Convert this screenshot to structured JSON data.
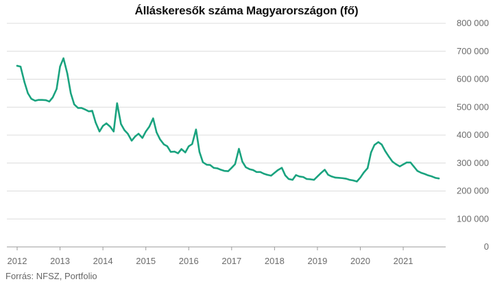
{
  "colors": {
    "line": "#1aa37f",
    "grid": "#dcdcdc",
    "axis": "#9a9a9a",
    "text": "#6b6b6b"
  },
  "source": "Forrás: NFSZ, Portfolio",
  "chart_data": {
    "type": "line",
    "title": "Álláskeresők száma Magyarországon (fő)",
    "xlabel": "",
    "ylabel": "",
    "xlim": [
      2012.0,
      2021.83
    ],
    "ylim": [
      0,
      800000
    ],
    "grid": true,
    "y_axis_position": "right",
    "x_ticks": [
      2012,
      2013,
      2014,
      2015,
      2016,
      2017,
      2018,
      2019,
      2020,
      2021
    ],
    "x_tick_labels": [
      "2012",
      "2013",
      "2014",
      "2015",
      "2016",
      "2017",
      "2018",
      "2019",
      "2020",
      "2021"
    ],
    "y_ticks": [
      0,
      100000,
      200000,
      300000,
      400000,
      500000,
      600000,
      700000,
      800000
    ],
    "y_tick_labels": [
      "0",
      "100 000",
      "200 000",
      "300 000",
      "400 000",
      "500 000",
      "600 000",
      "700 000",
      "800 000"
    ],
    "series": [
      {
        "x": [
          2012.0,
          2012.08,
          2012.17,
          2012.25,
          2012.33,
          2012.42,
          2012.5,
          2012.58,
          2012.67,
          2012.75,
          2012.83,
          2012.92,
          2013.0,
          2013.08,
          2013.17,
          2013.25,
          2013.33,
          2013.42,
          2013.5,
          2013.58,
          2013.67,
          2013.75,
          2013.83,
          2013.92,
          2014.0,
          2014.08,
          2014.17,
          2014.25,
          2014.33,
          2014.42,
          2014.5,
          2014.58,
          2014.67,
          2014.75,
          2014.83,
          2014.92,
          2015.0,
          2015.08,
          2015.17,
          2015.25,
          2015.33,
          2015.42,
          2015.5,
          2015.58,
          2015.67,
          2015.75,
          2015.83,
          2015.92,
          2016.0,
          2016.08,
          2016.17,
          2016.25,
          2016.33,
          2016.42,
          2016.5,
          2016.58,
          2016.67,
          2016.75,
          2016.83,
          2016.92,
          2017.0,
          2017.08,
          2017.17,
          2017.25,
          2017.33,
          2017.42,
          2017.5,
          2017.58,
          2017.67,
          2017.75,
          2017.83,
          2017.92,
          2018.0,
          2018.08,
          2018.17,
          2018.25,
          2018.33,
          2018.42,
          2018.5,
          2018.58,
          2018.67,
          2018.75,
          2018.83,
          2018.92,
          2019.0,
          2019.08,
          2019.17,
          2019.25,
          2019.33,
          2019.42,
          2019.5,
          2019.58,
          2019.67,
          2019.75,
          2019.83,
          2019.92,
          2020.0,
          2020.08,
          2020.17,
          2020.25,
          2020.33,
          2020.42,
          2020.5,
          2020.58,
          2020.67,
          2020.75,
          2020.83,
          2020.92,
          2021.0,
          2021.08,
          2021.17,
          2021.25,
          2021.33,
          2021.42,
          2021.5,
          2021.58,
          2021.67,
          2021.75,
          2021.83
        ],
        "values": [
          648000,
          645000,
          590000,
          550000,
          530000,
          523000,
          526000,
          526000,
          525000,
          520000,
          535000,
          565000,
          645000,
          675000,
          620000,
          550000,
          510000,
          497000,
          497000,
          492000,
          485000,
          487000,
          445000,
          413000,
          433000,
          442000,
          430000,
          413000,
          514000,
          440000,
          418000,
          405000,
          380000,
          395000,
          405000,
          390000,
          413000,
          430000,
          460000,
          410000,
          385000,
          367000,
          360000,
          340000,
          341000,
          335000,
          350000,
          338000,
          360000,
          368000,
          420000,
          340000,
          303000,
          294000,
          293000,
          283000,
          281000,
          276000,
          272000,
          271000,
          283000,
          296000,
          351000,
          305000,
          285000,
          278000,
          275000,
          268000,
          268000,
          262000,
          258000,
          255000,
          265000,
          275000,
          283000,
          256000,
          243000,
          240000,
          257000,
          252000,
          250000,
          243000,
          242000,
          240000,
          252000,
          264000,
          276000,
          258000,
          252000,
          248000,
          247000,
          246000,
          244000,
          240000,
          238000,
          234000,
          248000,
          266000,
          282000,
          338000,
          365000,
          375000,
          366000,
          343000,
          322000,
          305000,
          296000,
          288000,
          295000,
          302000,
          302000,
          287000,
          272000,
          265000,
          261000,
          256000,
          252000,
          247000,
          245000
        ]
      }
    ]
  }
}
